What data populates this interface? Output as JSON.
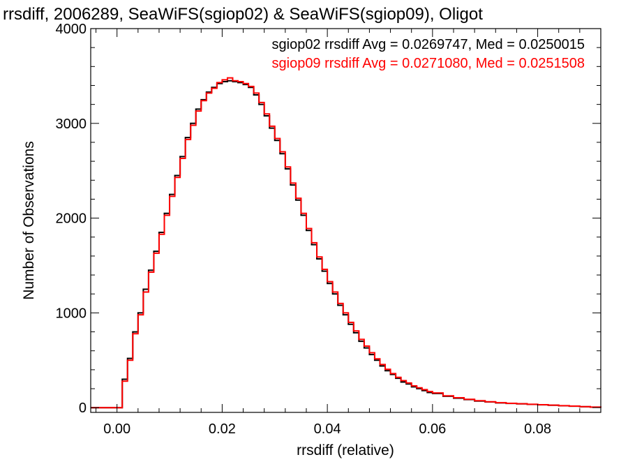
{
  "colors": {
    "series1": "#000000",
    "series2": "#ff0000",
    "axes": "#000000",
    "background": "#ffffff"
  },
  "chart_data": {
    "type": "line",
    "style": "step-histogram",
    "title": "rrsdiff, 2006289, SeaWiFS(sgiop02) & SeaWiFS(sgiop09), Oligot",
    "xlabel": "rrsdiff (relative)",
    "ylabel": "Number of Observations",
    "xlim": [
      -0.005,
      0.092
    ],
    "ylim": [
      -50,
      4000
    ],
    "x_ticks": [
      {
        "value": 0.0,
        "label": "0.00"
      },
      {
        "value": 0.02,
        "label": "0.02"
      },
      {
        "value": 0.04,
        "label": "0.04"
      },
      {
        "value": 0.06,
        "label": "0.06"
      },
      {
        "value": 0.08,
        "label": "0.08"
      }
    ],
    "y_ticks": [
      {
        "value": 0,
        "label": "0"
      },
      {
        "value": 1000,
        "label": "1000"
      },
      {
        "value": 2000,
        "label": "2000"
      },
      {
        "value": 3000,
        "label": "3000"
      },
      {
        "value": 4000,
        "label": "4000"
      }
    ],
    "grid": false,
    "legend_position": "top-right",
    "legend": [
      "sgiop02 rrsdiff Avg = 0.0269747, Med = 0.0250015",
      "sgiop09 rrsdiff Avg = 0.0271080, Med = 0.0251508"
    ],
    "series": [
      {
        "name": "sgiop02",
        "color": "#000000",
        "x": [
          -0.005,
          -0.003,
          -0.001,
          0.0,
          0.001,
          0.002,
          0.003,
          0.004,
          0.005,
          0.006,
          0.007,
          0.008,
          0.009,
          0.01,
          0.011,
          0.012,
          0.013,
          0.014,
          0.015,
          0.016,
          0.017,
          0.018,
          0.019,
          0.02,
          0.021,
          0.022,
          0.023,
          0.024,
          0.025,
          0.026,
          0.027,
          0.028,
          0.029,
          0.03,
          0.031,
          0.032,
          0.033,
          0.034,
          0.035,
          0.036,
          0.037,
          0.038,
          0.039,
          0.04,
          0.041,
          0.042,
          0.043,
          0.044,
          0.045,
          0.046,
          0.047,
          0.048,
          0.049,
          0.05,
          0.051,
          0.052,
          0.053,
          0.054,
          0.055,
          0.056,
          0.057,
          0.058,
          0.059,
          0.06,
          0.062,
          0.064,
          0.066,
          0.068,
          0.07,
          0.072,
          0.074,
          0.076,
          0.078,
          0.08,
          0.082,
          0.084,
          0.086,
          0.088,
          0.09,
          0.092
        ],
        "y": [
          0,
          0,
          0,
          0,
          300,
          520,
          800,
          1000,
          1250,
          1450,
          1650,
          1850,
          2050,
          2250,
          2450,
          2650,
          2850,
          3000,
          3150,
          3250,
          3330,
          3380,
          3420,
          3440,
          3450,
          3440,
          3430,
          3410,
          3380,
          3300,
          3200,
          3080,
          2950,
          2820,
          2680,
          2520,
          2350,
          2190,
          2030,
          1870,
          1720,
          1570,
          1440,
          1310,
          1200,
          1080,
          980,
          880,
          790,
          700,
          630,
          560,
          500,
          440,
          390,
          350,
          310,
          270,
          250,
          220,
          200,
          180,
          160,
          150,
          120,
          100,
          85,
          70,
          60,
          50,
          45,
          40,
          35,
          30,
          25,
          20,
          15,
          10,
          5,
          0
        ]
      },
      {
        "name": "sgiop09",
        "color": "#ff0000",
        "x": [
          -0.005,
          -0.003,
          -0.001,
          0.0,
          0.001,
          0.002,
          0.003,
          0.004,
          0.005,
          0.006,
          0.007,
          0.008,
          0.009,
          0.01,
          0.011,
          0.012,
          0.013,
          0.014,
          0.015,
          0.016,
          0.017,
          0.018,
          0.019,
          0.02,
          0.021,
          0.022,
          0.023,
          0.024,
          0.025,
          0.026,
          0.027,
          0.028,
          0.029,
          0.03,
          0.031,
          0.032,
          0.033,
          0.034,
          0.035,
          0.036,
          0.037,
          0.038,
          0.039,
          0.04,
          0.041,
          0.042,
          0.043,
          0.044,
          0.045,
          0.046,
          0.047,
          0.048,
          0.049,
          0.05,
          0.051,
          0.052,
          0.053,
          0.054,
          0.055,
          0.056,
          0.057,
          0.058,
          0.059,
          0.06,
          0.062,
          0.064,
          0.066,
          0.068,
          0.07,
          0.072,
          0.074,
          0.076,
          0.078,
          0.08,
          0.082,
          0.084,
          0.086,
          0.088,
          0.09,
          0.092
        ],
        "y": [
          0,
          0,
          0,
          0,
          280,
          500,
          780,
          980,
          1220,
          1430,
          1630,
          1830,
          2030,
          2230,
          2430,
          2630,
          2830,
          2980,
          3130,
          3240,
          3320,
          3370,
          3430,
          3460,
          3480,
          3450,
          3440,
          3420,
          3390,
          3320,
          3220,
          3100,
          2970,
          2840,
          2700,
          2540,
          2370,
          2210,
          2050,
          1890,
          1740,
          1590,
          1460,
          1330,
          1220,
          1100,
          1000,
          900,
          810,
          720,
          650,
          580,
          515,
          455,
          405,
          360,
          320,
          285,
          260,
          230,
          210,
          190,
          170,
          155,
          125,
          105,
          88,
          73,
          62,
          52,
          46,
          41,
          36,
          31,
          26,
          21,
          16,
          11,
          6,
          0
        ]
      }
    ]
  }
}
